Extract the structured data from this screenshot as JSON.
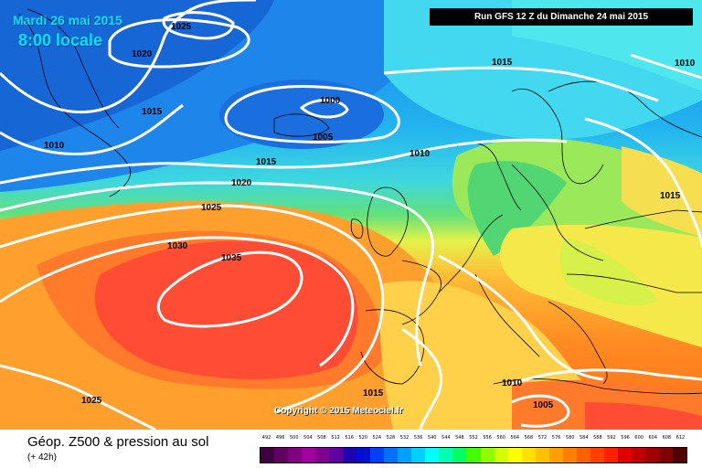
{
  "header": {
    "date": "Mardi 26 mai 2015",
    "local_time": "8:00 locale",
    "run": "Run GFS 12 Z du Dimanche 24 mai 2015"
  },
  "copyright": "Copyright © 2015 Meteociel.fr",
  "footer": {
    "title": "Géop. Z500 & pression au sol",
    "lead": "(+ 42h)"
  },
  "isobars": [
    "1025",
    "1020",
    "1015",
    "1010",
    "1000",
    "1005",
    "1015",
    "1010",
    "1010",
    "1015",
    "1020",
    "1025",
    "1030",
    "1035",
    "1015",
    "1010",
    "1005",
    "1025",
    "1015"
  ],
  "scale": {
    "labels": [
      "492",
      "496",
      "500",
      "504",
      "508",
      "512",
      "516",
      "520",
      "524",
      "528",
      "532",
      "536",
      "540",
      "544",
      "548",
      "552",
      "556",
      "560",
      "564",
      "568",
      "572",
      "576",
      "580",
      "584",
      "588",
      "592",
      "596",
      "600",
      "604",
      "608",
      "612"
    ],
    "colors": [
      "#400040",
      "#600060",
      "#800080",
      "#a000a0",
      "#800090",
      "#6000a0",
      "#2000b0",
      "#0010d0",
      "#0040ff",
      "#0070ff",
      "#00a0ff",
      "#00d0ff",
      "#00ffff",
      "#00ffb0",
      "#00ff60",
      "#40ff00",
      "#90ff00",
      "#d0ff00",
      "#ffff00",
      "#ffe000",
      "#ffc000",
      "#ffa000",
      "#ff8000",
      "#ff6000",
      "#ff4000",
      "#ff2000",
      "#e00000",
      "#c00000",
      "#a00000",
      "#800000",
      "#500000"
    ]
  },
  "colors": {
    "low_blue": "#0060e0",
    "high_red": "#ff3030",
    "coast": "#000000",
    "isobar": "#ffffff"
  }
}
